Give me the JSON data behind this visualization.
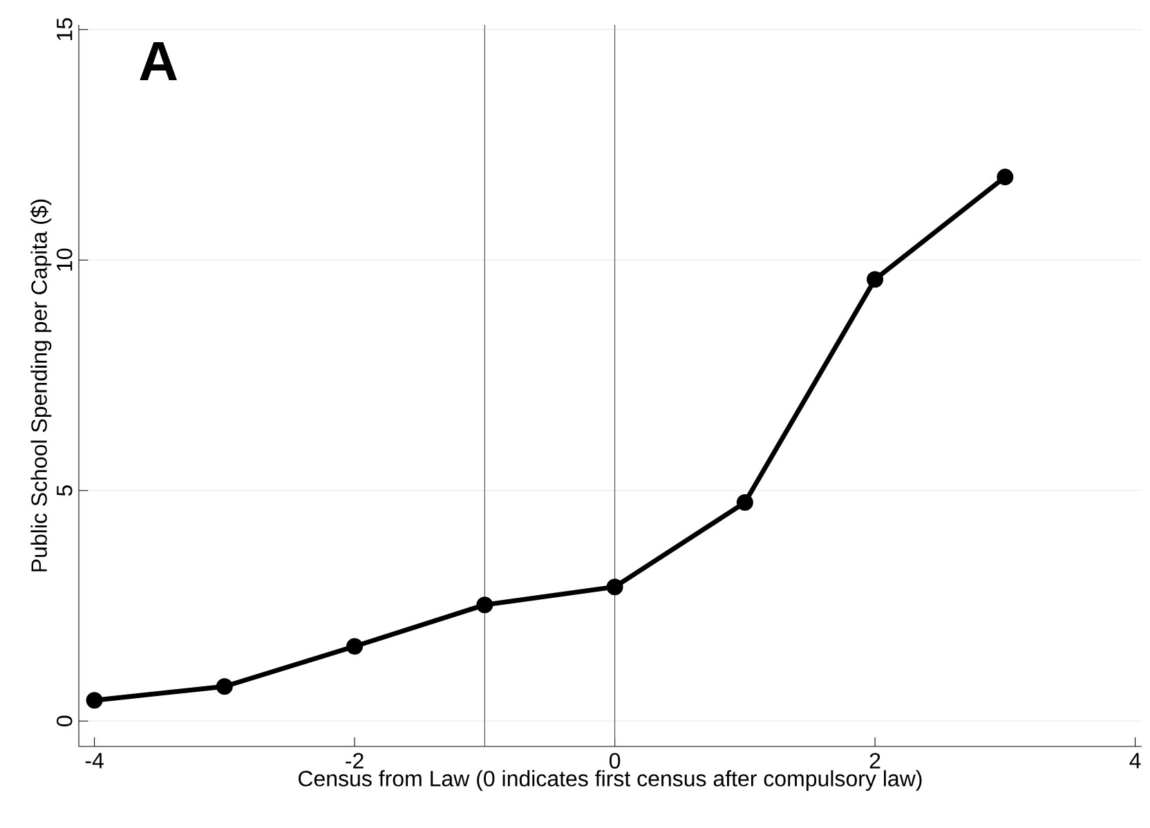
{
  "chart_data": {
    "type": "line",
    "xlabel": "Census from Law (0 indicates first census after compulsory law)",
    "ylabel": "Public School Spending per Capita ($)",
    "annotations": [
      "A"
    ],
    "x": [
      -4,
      -3,
      -2,
      -1,
      0,
      1,
      2,
      3
    ],
    "series": [
      {
        "color": "#000000",
        "values": [
          0.45,
          0.75,
          1.62,
          2.52,
          2.91,
          4.74,
          9.58,
          11.8
        ]
      }
    ],
    "xlim": [
      -4.12,
      4.05
    ],
    "ylim": [
      -0.55,
      15.1
    ],
    "xticks": [
      -4,
      -2,
      0,
      2,
      4
    ],
    "yticks": [
      0,
      5,
      10,
      15
    ],
    "grid": "y",
    "marker": "circle",
    "line_style": "solid",
    "ref_lines": [
      {
        "axis": "x",
        "value": -1,
        "color": "#404040"
      },
      {
        "axis": "x",
        "value": 0,
        "color": "#404040"
      }
    ]
  }
}
